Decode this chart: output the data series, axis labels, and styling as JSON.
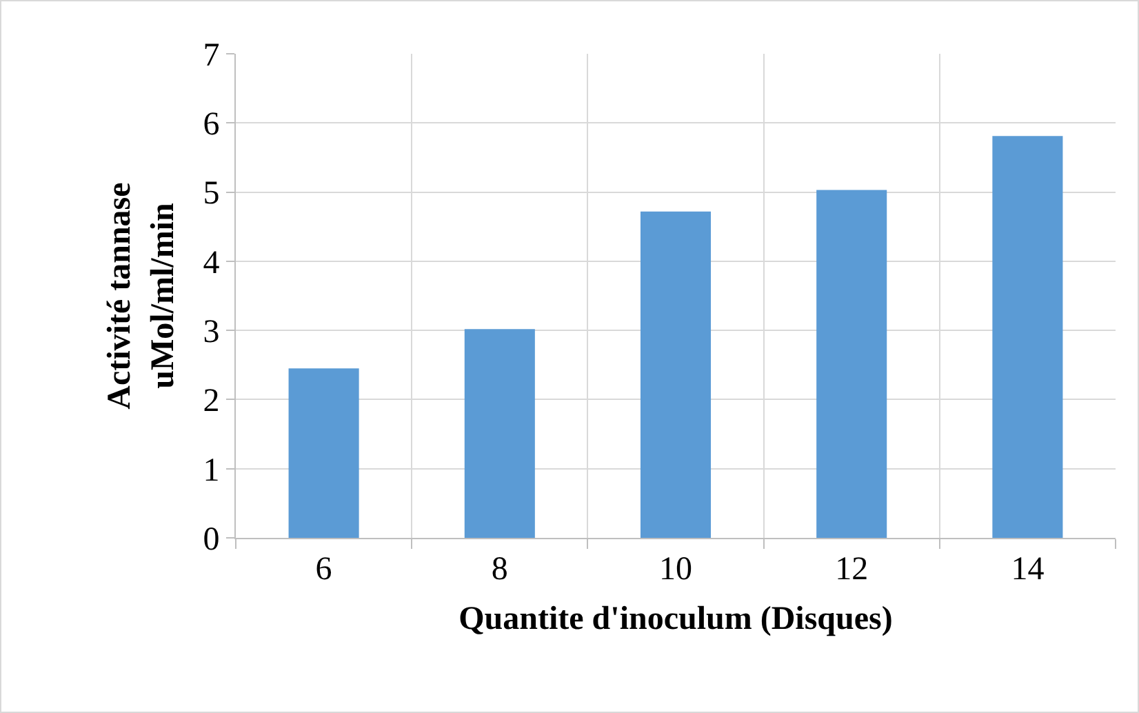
{
  "chart_data": {
    "type": "bar",
    "xlabel": "Quantite d'inoculum (Disques)",
    "ylabel": "Activité tannase\nuMol/ml/min",
    "categories": [
      "6",
      "8",
      "10",
      "12",
      "14"
    ],
    "values": [
      2.45,
      3.02,
      4.72,
      5.03,
      5.81
    ],
    "color": "#5b9bd5",
    "ylim": [
      0,
      7
    ],
    "yticks": [
      0,
      1,
      2,
      3,
      4,
      5,
      6,
      7
    ],
    "grid": true,
    "legend": false
  }
}
